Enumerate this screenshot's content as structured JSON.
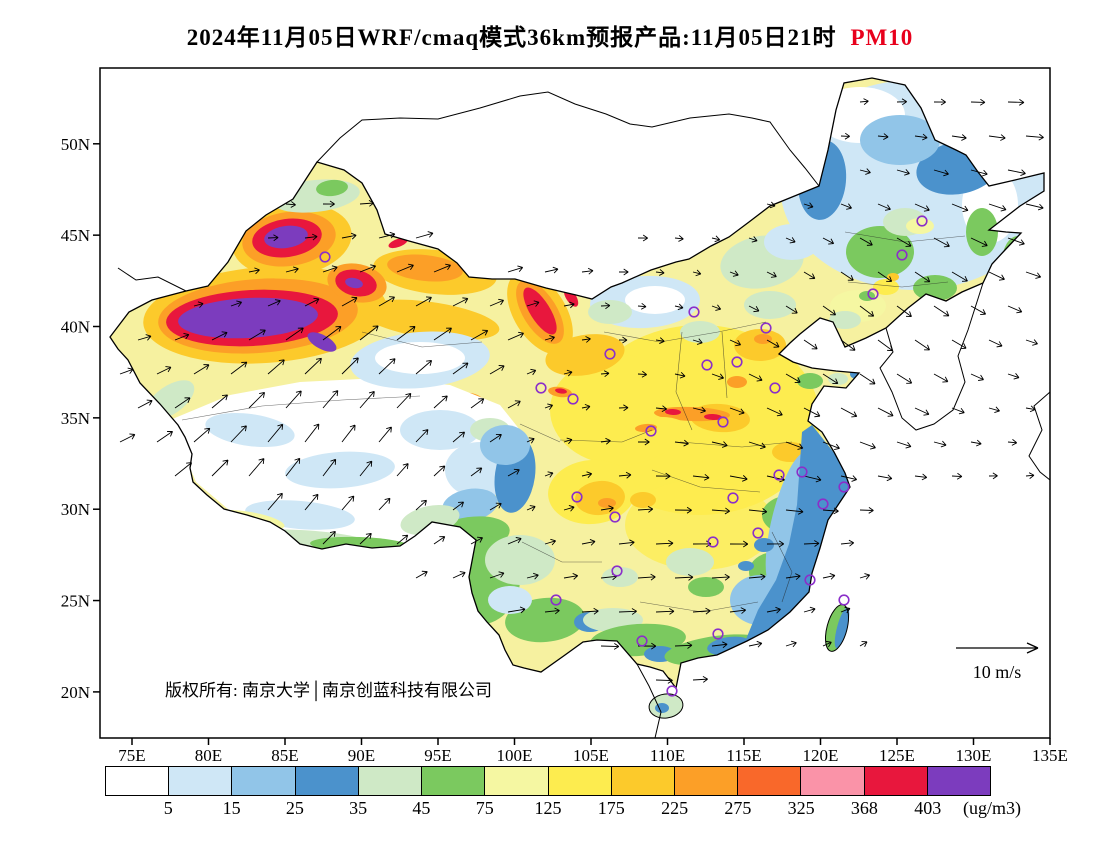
{
  "title": {
    "text": "2024年11月05日WRF/cmaq模式36km预报产品:11月05日21时",
    "pollutant": "PM10"
  },
  "axes": {
    "lat": [
      "50N",
      "45N",
      "40N",
      "35N",
      "30N",
      "25N",
      "20N"
    ],
    "lon": [
      "75E",
      "80E",
      "85E",
      "90E",
      "95E",
      "100E",
      "105E",
      "110E",
      "115E",
      "120E",
      "125E",
      "130E",
      "135E"
    ]
  },
  "annotations": {
    "copyright": "版权所有: 南京大学│南京创蓝科技有限公司",
    "wind_legend": "10 m/s"
  },
  "markers": {
    "color": "#8b2fc9",
    "count": 30
  },
  "colorbar": {
    "ticks": [
      "5",
      "15",
      "25",
      "35",
      "45",
      "75",
      "125",
      "175",
      "225",
      "275",
      "325",
      "368",
      "403"
    ],
    "unit": "(ug/m3)",
    "colors": [
      "#ffffff",
      "#cfe7f6",
      "#91c5e8",
      "#4b92cc",
      "#cfe9c6",
      "#7bc95f",
      "#f5f7a2",
      "#fdec4f",
      "#fcca2b",
      "#fc9f27",
      "#f9682a",
      "#fa93a8",
      "#e8173d",
      "#7c3cbe"
    ]
  },
  "chart_data": {
    "type": "heatmap",
    "subtype": "filled-contour-map-with-wind-vectors",
    "variable": "PM10",
    "unit": "ug/m3",
    "model": "WRF/CMAQ 36km forecast product",
    "valid_label": "2024-11-05 21时",
    "contour_levels": [
      5,
      15,
      25,
      35,
      45,
      75,
      125,
      175,
      225,
      275,
      325,
      368,
      403
    ],
    "lon_range": [
      75,
      135
    ],
    "lat_range": [
      20,
      50
    ],
    "wind_reference_ms": 10,
    "notable_features": [
      "maximum >403 ug/m3 (purple) over the Tarim Basin, southern Xinjiang (~78-90E, 37-40N), ringed by red/orange/gold",
      "secondary purple/red maxima in northern Xinjiang (~85E, 45N) and near Turpan (~90E, 42.5N)",
      "narrow red band (325-403) along the Hexi Corridor (~96E, 39-41N)",
      "broad yellow field (75-175) across central and eastern China",
      "orange-red streaks (175-325) over southern Shanxi / northern Henan and near Xi'an",
      "low values <45 (white/light blue) over the Tibetan Plateau and much of Northeast China",
      "blue band (25-45) along the southeast coast (Zhejiang, Fujian, Guangdong, Taiwan Strait)",
      "green transition zones (45-75) over Yunnan, Guangxi coast, Northeast patches",
      "wind vectors overlaid everywhere inside the model domain; 10 m/s reference arrow at lower right",
      "purple circles mark ~30 major cities"
    ]
  }
}
